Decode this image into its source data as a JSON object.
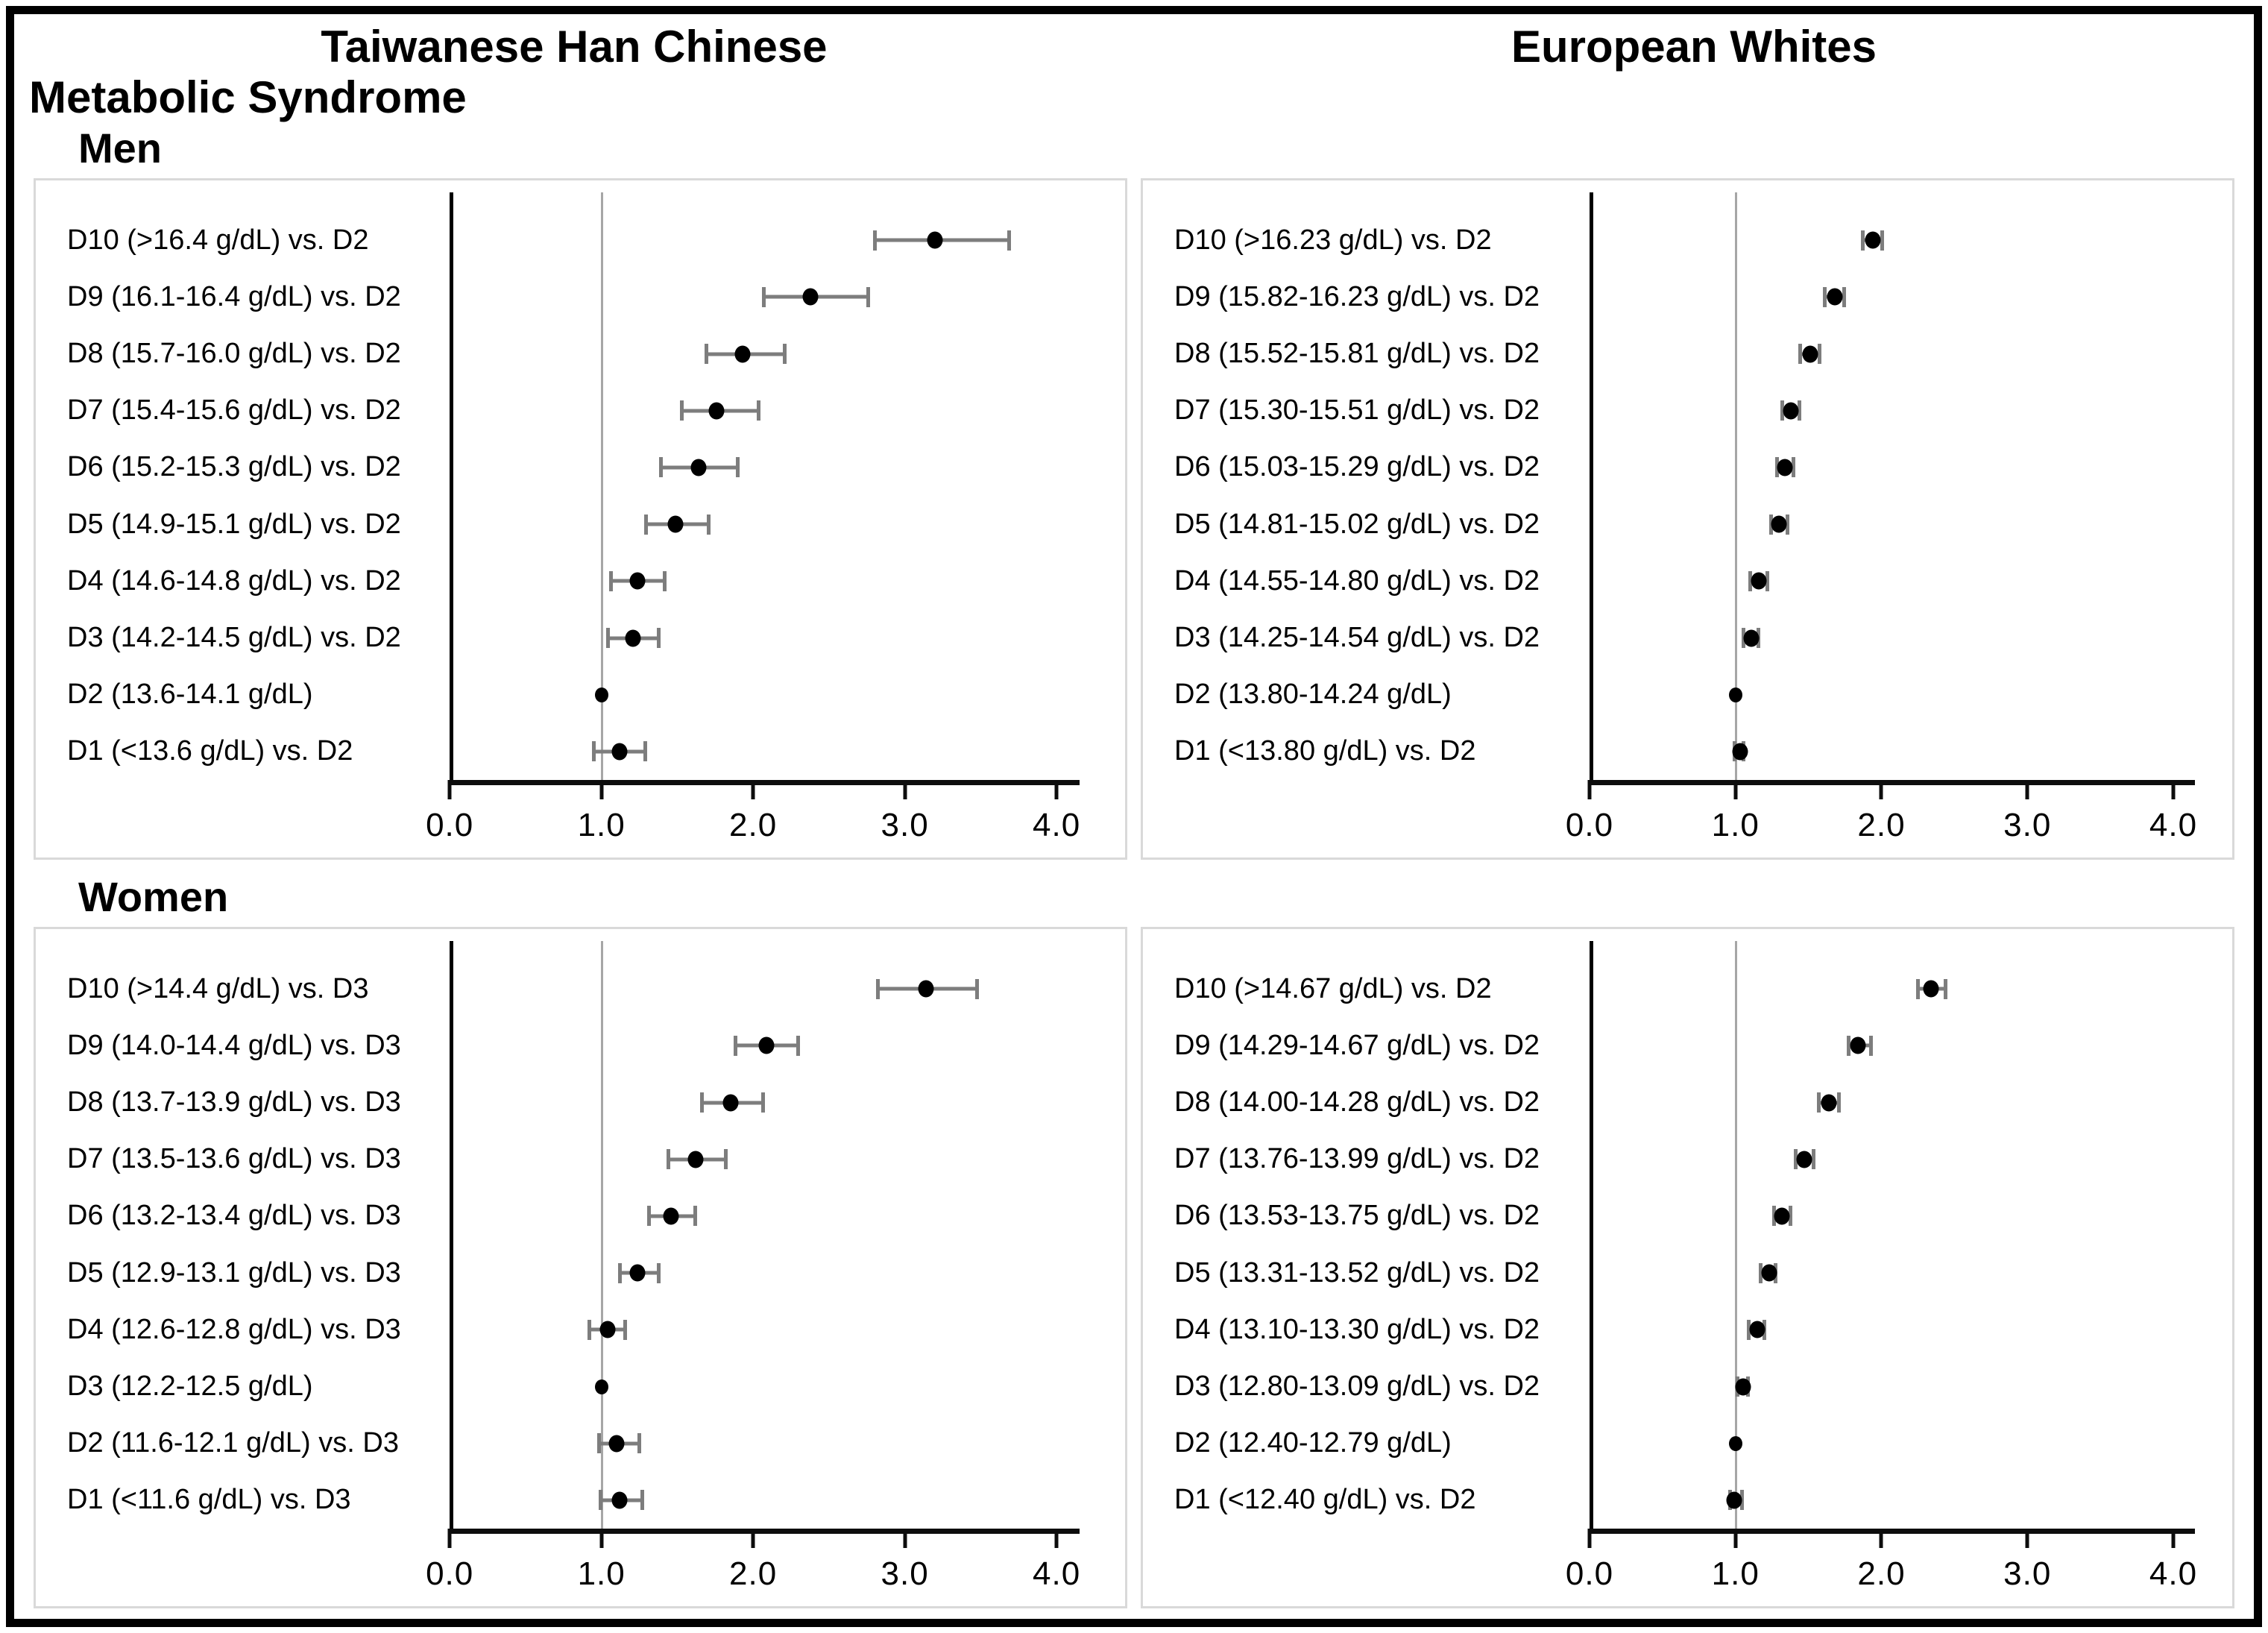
{
  "figure": {
    "column_headers": [
      "Taiwanese Han Chinese",
      "European Whites"
    ],
    "title": "Metabolic Syndrome",
    "section_headers": [
      "Men",
      "Women"
    ]
  },
  "axis": {
    "min": 0,
    "max": 4,
    "plot_max": 4.15,
    "tick_values": [
      0,
      1,
      2,
      3,
      4
    ],
    "tick_labels": [
      "0.0",
      "1.0",
      "2.0",
      "3.0",
      "4.0"
    ],
    "reference_value": 1.0
  },
  "colors": {
    "marker": "#000000",
    "error_bar": "#7d7d7d",
    "reference_line": "#a6a6a6",
    "panel_border": "#d9d9d9",
    "frame_border": "#000000"
  },
  "chart_data": [
    {
      "id": "men-thc",
      "type": "scatter",
      "subtype": "forest-plot",
      "population": "Taiwanese Han Chinese",
      "sex": "Men",
      "xlim": [
        0,
        4
      ],
      "reference_line": 1.0,
      "points": [
        {
          "label": "D10 (>16.4 g/dL) vs. D2",
          "or": 3.2,
          "lo": 2.79,
          "hi": 3.7,
          "ref": false
        },
        {
          "label": "D9 (16.1-16.4 g/dL) vs. D2",
          "or": 2.38,
          "lo": 2.06,
          "hi": 2.77,
          "ref": false
        },
        {
          "label": "D8 (15.7-16.0 g/dL) vs. D2",
          "or": 1.93,
          "lo": 1.68,
          "hi": 2.22,
          "ref": false
        },
        {
          "label": "D7 (15.4-15.6 g/dL) vs. D2",
          "or": 1.76,
          "lo": 1.52,
          "hi": 2.05,
          "ref": false
        },
        {
          "label": "D6 (15.2-15.3 g/dL) vs. D2",
          "or": 1.64,
          "lo": 1.38,
          "hi": 1.91,
          "ref": false
        },
        {
          "label": "D5 (14.9-15.1 g/dL) vs. D2",
          "or": 1.49,
          "lo": 1.28,
          "hi": 1.72,
          "ref": false
        },
        {
          "label": "D4 (14.6-14.8 g/dL) vs. D2",
          "or": 1.24,
          "lo": 1.05,
          "hi": 1.43,
          "ref": false
        },
        {
          "label": "D3 (14.2-14.5 g/dL) vs. D2",
          "or": 1.21,
          "lo": 1.03,
          "hi": 1.39,
          "ref": false
        },
        {
          "label": "D2 (13.6-14.1 g/dL)",
          "or": 1.0,
          "lo": null,
          "hi": null,
          "ref": true
        },
        {
          "label": "D1 (<13.6 g/dL) vs. D2",
          "or": 1.12,
          "lo": 0.94,
          "hi": 1.3,
          "ref": false
        }
      ]
    },
    {
      "id": "men-ew",
      "type": "scatter",
      "subtype": "forest-plot",
      "population": "European Whites",
      "sex": "Men",
      "xlim": [
        0,
        4
      ],
      "reference_line": 1.0,
      "points": [
        {
          "label": "D10 (>16.23 g/dL) vs. D2",
          "or": 1.94,
          "lo": 1.86,
          "hi": 2.02,
          "ref": false
        },
        {
          "label": "D9 (15.82-16.23 g/dL) vs. D2",
          "or": 1.68,
          "lo": 1.6,
          "hi": 1.76,
          "ref": false
        },
        {
          "label": "D8 (15.52-15.81 g/dL) vs. D2",
          "or": 1.51,
          "lo": 1.43,
          "hi": 1.59,
          "ref": false
        },
        {
          "label": "D7 (15.30-15.51 g/dL) vs. D2",
          "or": 1.38,
          "lo": 1.31,
          "hi": 1.45,
          "ref": false
        },
        {
          "label": "D6 (15.03-15.29 g/dL) vs. D2",
          "or": 1.34,
          "lo": 1.27,
          "hi": 1.41,
          "ref": false
        },
        {
          "label": "D5 (14.81-15.02 g/dL) vs. D2",
          "or": 1.3,
          "lo": 1.23,
          "hi": 1.37,
          "ref": false
        },
        {
          "label": "D4 (14.55-14.80 g/dL) vs. D2",
          "or": 1.16,
          "lo": 1.09,
          "hi": 1.23,
          "ref": false
        },
        {
          "label": "D3 (14.25-14.54 g/dL) vs. D2",
          "or": 1.11,
          "lo": 1.04,
          "hi": 1.17,
          "ref": false
        },
        {
          "label": "D2 (13.80-14.24 g/dL)",
          "or": 1.0,
          "lo": null,
          "hi": null,
          "ref": true
        },
        {
          "label": "D1 (<13.80 g/dL) vs. D2",
          "or": 1.03,
          "lo": 0.98,
          "hi": 1.07,
          "ref": false
        }
      ]
    },
    {
      "id": "women-thc",
      "type": "scatter",
      "subtype": "forest-plot",
      "population": "Taiwanese Han Chinese",
      "sex": "Women",
      "xlim": [
        0,
        4
      ],
      "reference_line": 1.0,
      "points": [
        {
          "label": "D10 (>14.4 g/dL) vs. D3",
          "or": 3.14,
          "lo": 2.81,
          "hi": 3.49,
          "ref": false
        },
        {
          "label": "D9 (14.0-14.4 g/dL) vs. D3",
          "or": 2.09,
          "lo": 1.87,
          "hi": 2.31,
          "ref": false
        },
        {
          "label": "D8 (13.7-13.9 g/dL) vs. D3",
          "or": 1.85,
          "lo": 1.65,
          "hi": 2.08,
          "ref": false
        },
        {
          "label": "D7 (13.5-13.6 g/dL) vs. D3",
          "or": 1.62,
          "lo": 1.43,
          "hi": 1.83,
          "ref": false
        },
        {
          "label": "D6 (13.2-13.4 g/dL) vs. D3",
          "or": 1.46,
          "lo": 1.3,
          "hi": 1.63,
          "ref": false
        },
        {
          "label": "D5 (12.9-13.1 g/dL) vs. D3",
          "or": 1.24,
          "lo": 1.11,
          "hi": 1.39,
          "ref": false
        },
        {
          "label": "D4 (12.6-12.8 g/dL) vs. D3",
          "or": 1.04,
          "lo": 0.91,
          "hi": 1.17,
          "ref": false
        },
        {
          "label": "D3 (12.2-12.5 g/dL)",
          "or": 1.0,
          "lo": null,
          "hi": null,
          "ref": true
        },
        {
          "label": "D2 (11.6-12.1 g/dL) vs. D3",
          "or": 1.1,
          "lo": 0.97,
          "hi": 1.26,
          "ref": false
        },
        {
          "label": "D1 (<11.6 g/dL) vs. D3",
          "or": 1.12,
          "lo": 0.98,
          "hi": 1.28,
          "ref": false
        }
      ]
    },
    {
      "id": "women-ew",
      "type": "scatter",
      "subtype": "forest-plot",
      "population": "European Whites",
      "sex": "Women",
      "xlim": [
        0,
        4
      ],
      "reference_line": 1.0,
      "points": [
        {
          "label": "D10 (>14.67 g/dL) vs. D2",
          "or": 2.34,
          "lo": 2.24,
          "hi": 2.45,
          "ref": false
        },
        {
          "label": "D9 (14.29-14.67 g/dL) vs. D2",
          "or": 1.84,
          "lo": 1.76,
          "hi": 1.94,
          "ref": false
        },
        {
          "label": "D8 (14.00-14.28 g/dL) vs. D2",
          "or": 1.64,
          "lo": 1.56,
          "hi": 1.72,
          "ref": false
        },
        {
          "label": "D7 (13.76-13.99 g/dL) vs. D2",
          "or": 1.47,
          "lo": 1.4,
          "hi": 1.55,
          "ref": false
        },
        {
          "label": "D6 (13.53-13.75 g/dL) vs. D2",
          "or": 1.32,
          "lo": 1.25,
          "hi": 1.39,
          "ref": false
        },
        {
          "label": "D5 (13.31-13.52 g/dL) vs. D2",
          "or": 1.23,
          "lo": 1.16,
          "hi": 1.29,
          "ref": false
        },
        {
          "label": "D4 (13.10-13.30 g/dL) vs. D2",
          "or": 1.15,
          "lo": 1.08,
          "hi": 1.21,
          "ref": false
        },
        {
          "label": "D3 (12.80-13.09 g/dL) vs. D2",
          "or": 1.05,
          "lo": 1.0,
          "hi": 1.1,
          "ref": false
        },
        {
          "label": "D2 (12.40-12.79 g/dL)",
          "or": 1.0,
          "lo": null,
          "hi": null,
          "ref": true
        },
        {
          "label": "D1 (<12.40 g/dL) vs. D2",
          "or": 0.99,
          "lo": 0.95,
          "hi": 1.06,
          "ref": false
        }
      ]
    }
  ]
}
